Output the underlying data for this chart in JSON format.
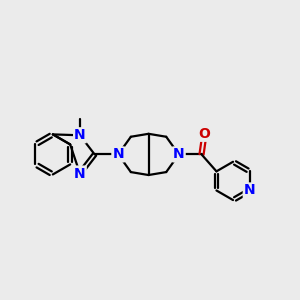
{
  "bg_color": "#ebebeb",
  "bond_color": "#000000",
  "N_color": "#0000ff",
  "O_color": "#cc0000",
  "bond_width": 1.6,
  "font_size_atoms": 10,
  "fig_width": 3.0,
  "fig_height": 3.0,
  "dpi": 100,
  "xlim": [
    0,
    10
  ],
  "ylim": [
    1,
    8
  ]
}
